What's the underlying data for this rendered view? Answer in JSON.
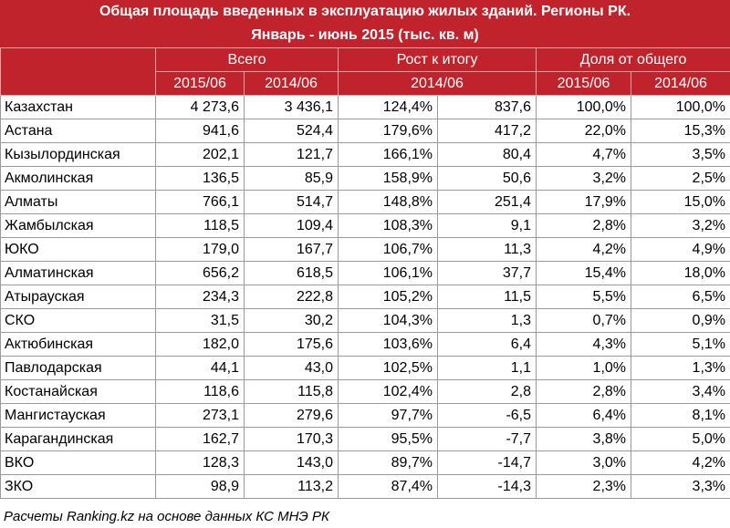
{
  "title": {
    "line1": "Общая площадь введенных в эксплуатацию жилых зданий. Регионы РК.",
    "line2": "Январь - июнь 2015 (тыс. кв. м)"
  },
  "header": {
    "groups": [
      "Всего",
      "Рост к итогу",
      "Доля от общего"
    ],
    "sub": [
      "2015/06",
      "2014/06",
      "2014/06",
      "2015/06",
      "2014/06"
    ]
  },
  "rows": [
    {
      "region": "Казахстан",
      "v2015": "4 273,6",
      "v2014": "3 436,1",
      "growth_pct": "124,4%",
      "growth_abs": "837,6",
      "share2015": "100,0%",
      "share2014": "100,0%"
    },
    {
      "region": "Астана",
      "v2015": "941,6",
      "v2014": "524,4",
      "growth_pct": "179,6%",
      "growth_abs": "417,2",
      "share2015": "22,0%",
      "share2014": "15,3%"
    },
    {
      "region": "Кызылординская",
      "v2015": "202,1",
      "v2014": "121,7",
      "growth_pct": "166,1%",
      "growth_abs": "80,4",
      "share2015": "4,7%",
      "share2014": "3,5%"
    },
    {
      "region": "Акмолинская",
      "v2015": "136,5",
      "v2014": "85,9",
      "growth_pct": "158,9%",
      "growth_abs": "50,6",
      "share2015": "3,2%",
      "share2014": "2,5%"
    },
    {
      "region": "Алматы",
      "v2015": "766,1",
      "v2014": "514,7",
      "growth_pct": "148,8%",
      "growth_abs": "251,4",
      "share2015": "17,9%",
      "share2014": "15,0%"
    },
    {
      "region": "Жамбылская",
      "v2015": "118,5",
      "v2014": "109,4",
      "growth_pct": "108,3%",
      "growth_abs": "9,1",
      "share2015": "2,8%",
      "share2014": "3,2%"
    },
    {
      "region": "ЮКО",
      "v2015": "179,0",
      "v2014": "167,7",
      "growth_pct": "106,7%",
      "growth_abs": "11,3",
      "share2015": "4,2%",
      "share2014": "4,9%"
    },
    {
      "region": "Алматинская",
      "v2015": "656,2",
      "v2014": "618,5",
      "growth_pct": "106,1%",
      "growth_abs": "37,7",
      "share2015": "15,4%",
      "share2014": "18,0%"
    },
    {
      "region": "Атырауская",
      "v2015": "234,3",
      "v2014": "222,8",
      "growth_pct": "105,2%",
      "growth_abs": "11,5",
      "share2015": "5,5%",
      "share2014": "6,5%"
    },
    {
      "region": "СКО",
      "v2015": "31,5",
      "v2014": "30,2",
      "growth_pct": "104,3%",
      "growth_abs": "1,3",
      "share2015": "0,7%",
      "share2014": "0,9%"
    },
    {
      "region": "Актюбинская",
      "v2015": "182,0",
      "v2014": "175,6",
      "growth_pct": "103,6%",
      "growth_abs": "6,4",
      "share2015": "4,3%",
      "share2014": "5,1%"
    },
    {
      "region": "Павлодарская",
      "v2015": "44,1",
      "v2014": "43,0",
      "growth_pct": "102,5%",
      "growth_abs": "1,1",
      "share2015": "1,0%",
      "share2014": "1,3%"
    },
    {
      "region": "Костанайская",
      "v2015": "118,6",
      "v2014": "115,8",
      "growth_pct": "102,4%",
      "growth_abs": "2,8",
      "share2015": "2,8%",
      "share2014": "3,4%"
    },
    {
      "region": "Мангистауская",
      "v2015": "273,1",
      "v2014": "279,6",
      "growth_pct": "97,7%",
      "growth_abs": "-6,5",
      "share2015": "6,4%",
      "share2014": "8,1%"
    },
    {
      "region": "Карагандинская",
      "v2015": "162,7",
      "v2014": "170,3",
      "growth_pct": "95,5%",
      "growth_abs": "-7,7",
      "share2015": "3,8%",
      "share2014": "5,0%"
    },
    {
      "region": "ВКО",
      "v2015": "128,3",
      "v2014": "143,0",
      "growth_pct": "89,7%",
      "growth_abs": "-14,7",
      "share2015": "3,0%",
      "share2014": "4,2%"
    },
    {
      "region": "ЗКО",
      "v2015": "98,9",
      "v2014": "113,2",
      "growth_pct": "87,4%",
      "growth_abs": "-14,3",
      "share2015": "2,3%",
      "share2014": "3,3%"
    }
  ],
  "footer": "Расчеты Ranking.kz на основе данных КС МНЭ РК",
  "colors": {
    "header_bg": "#c0232b",
    "header_text": "#ffffff",
    "grid": "#9a9a9a"
  }
}
